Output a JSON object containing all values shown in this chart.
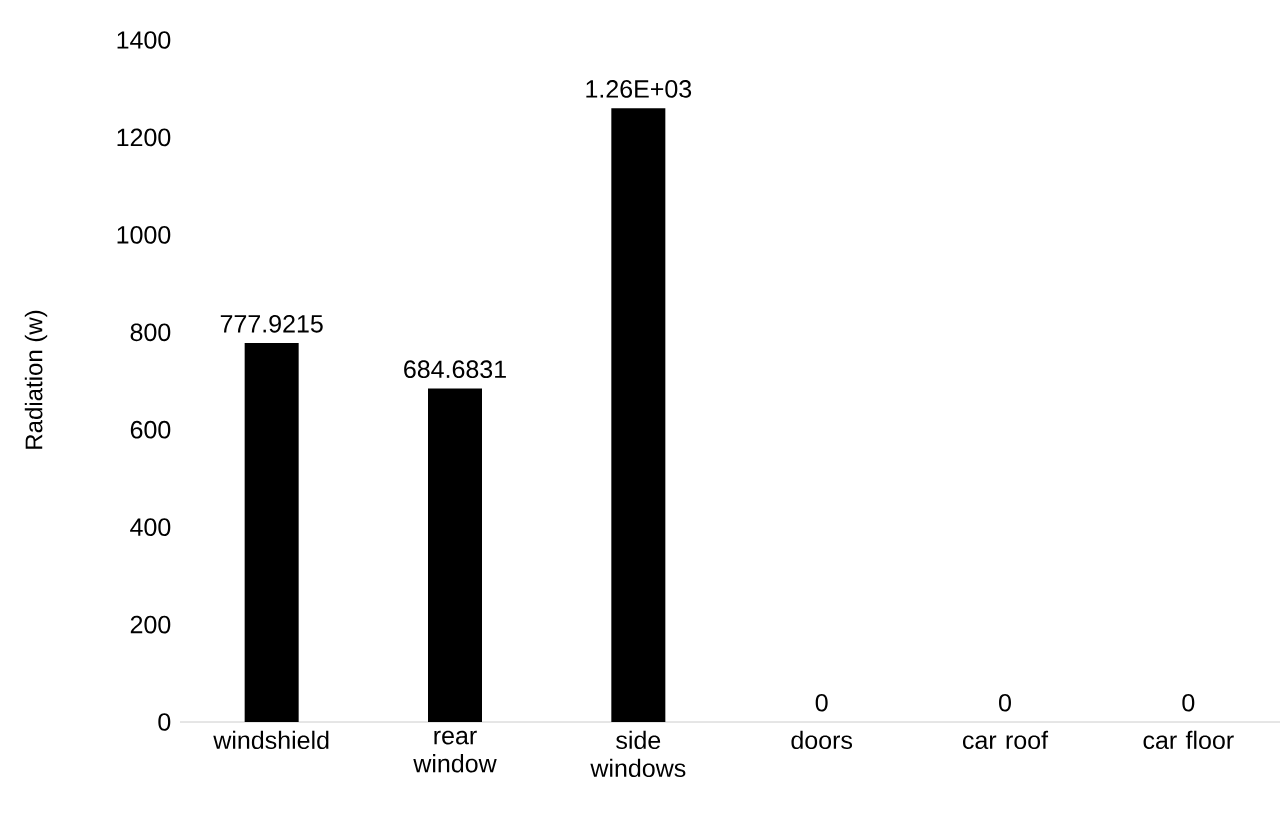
{
  "chart_data": {
    "type": "bar",
    "ylabel": "Radiation (w)",
    "categories": [
      "windshield",
      "rear window",
      "side windows",
      "doors",
      "car roof",
      "car floor"
    ],
    "values": [
      777.9215,
      684.6831,
      1260,
      0,
      0,
      0
    ],
    "value_labels": [
      "777.9215",
      "684.6831",
      "1.26E+03",
      "0",
      "0",
      "0"
    ],
    "color": "#000000",
    "ylim": [
      0,
      1400
    ],
    "yticks": [
      0,
      200,
      400,
      600,
      800,
      1000,
      1200,
      1400
    ]
  }
}
